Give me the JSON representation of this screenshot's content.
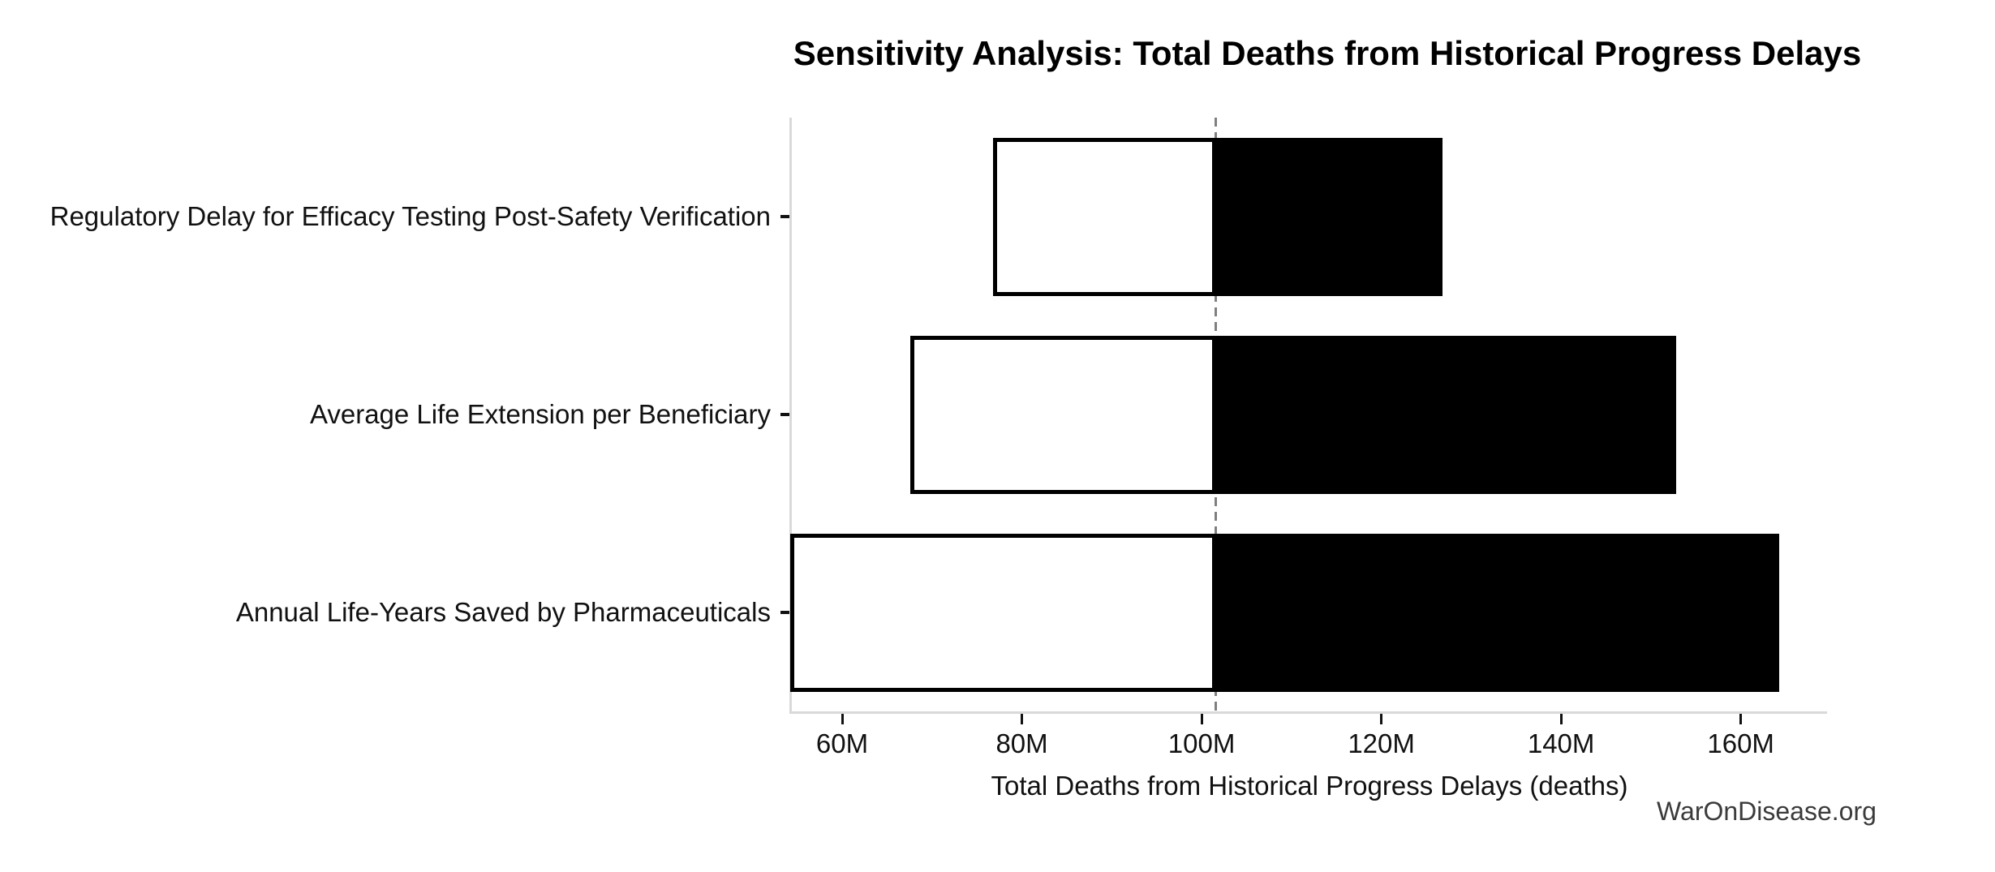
{
  "chart_data": {
    "type": "bar",
    "variant": "tornado-sensitivity",
    "orientation": "horizontal",
    "title": "Sensitivity Analysis: Total Deaths from Historical Progress Delays",
    "xlabel": "Total Deaths from Historical Progress Delays (deaths)",
    "watermark": "WarOnDisease.org",
    "value_unit": "millions of deaths",
    "baseline_value": 101.6,
    "xlim": [
      54.4,
      169.6
    ],
    "xticks": [
      {
        "value": 60,
        "label": "60M"
      },
      {
        "value": 80,
        "label": "80M"
      },
      {
        "value": 100,
        "label": "100M"
      },
      {
        "value": 120,
        "label": "120M"
      },
      {
        "value": 140,
        "label": "140M"
      },
      {
        "value": 160,
        "label": "160M"
      }
    ],
    "bars": [
      {
        "label": "Regulatory Delay for Efficacy Testing Post-Safety Verification",
        "low": 77.0,
        "high": 126.6
      },
      {
        "label": "Average Life Extension per Beneficiary",
        "low": 67.8,
        "high": 152.6
      },
      {
        "label": "Annual Life-Years Saved by Pharmaceuticals",
        "low": 54.4,
        "high": 164.1
      }
    ],
    "grid": false,
    "legend": false,
    "colors": {
      "low_fill": "#ffffff",
      "high_fill": "#000000",
      "bar_edge": "#000000",
      "baseline_line": "#7f7f7f",
      "spine": "#d9d9d9",
      "tick_mark": "#111111",
      "text": "#111111",
      "watermark_text": "#3b3b3b",
      "background": "#ffffff"
    }
  }
}
